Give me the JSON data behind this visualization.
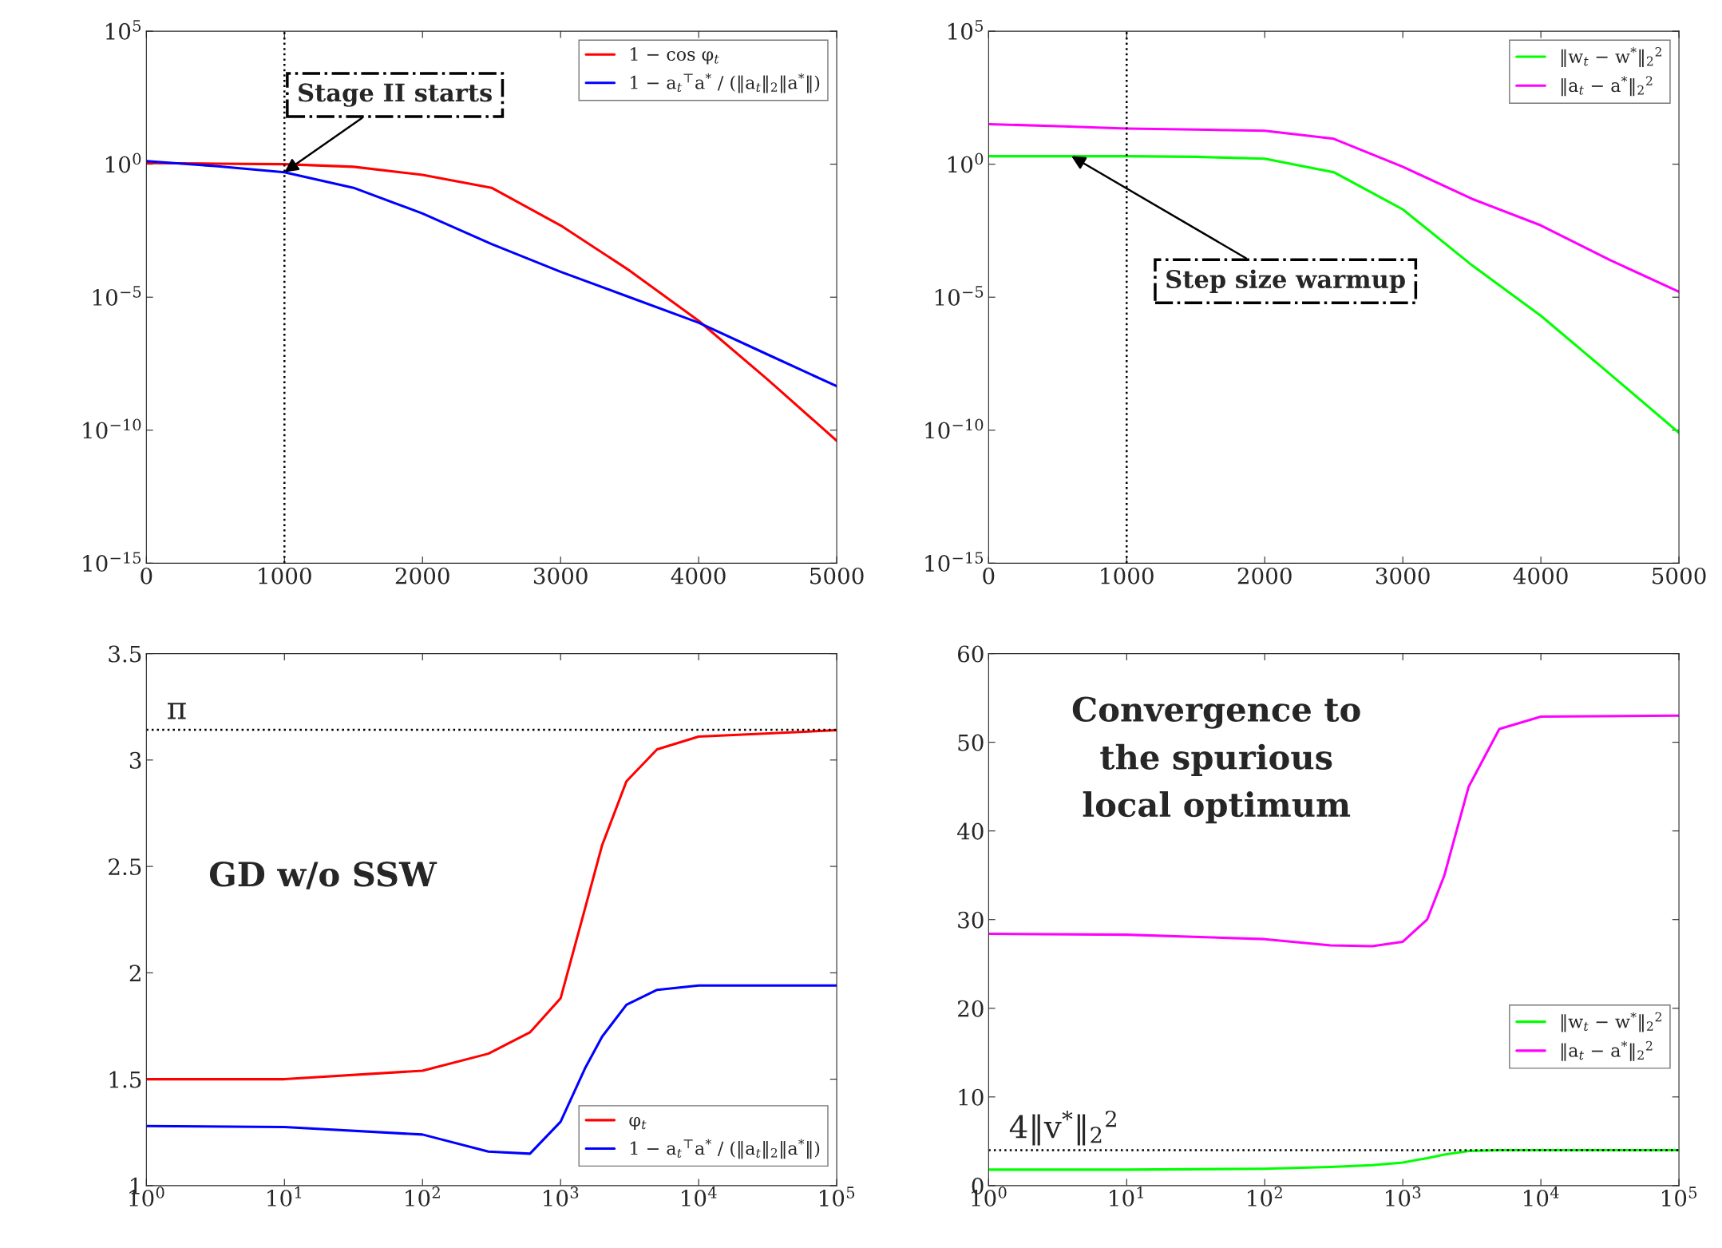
{
  "chart_data": [
    {
      "type": "line",
      "log": "y",
      "legend": "top right",
      "x": [
        0,
        500,
        1000,
        1500,
        2000,
        2500,
        3000,
        3500,
        4000,
        4500,
        5000
      ],
      "xlim": [
        0,
        5000
      ],
      "xticks": [
        0,
        1000,
        2000,
        3000,
        4000,
        5000
      ],
      "ylim": [
        1e-15,
        100000.0
      ],
      "yticks": [
        {
          "value": 1e-15,
          "label": "10$^{−15}$"
        },
        {
          "value": 1e-10,
          "label": "10$^{−10}$"
        },
        {
          "value": 1e-05,
          "label": "10$^{−5}$"
        },
        {
          "value": 1,
          "label": "10$^{0}$"
        },
        {
          "value": 100000.0,
          "label": "10$^{5}$"
        }
      ],
      "series": [
        {
          "name": "1 − cos φ$_{t}$",
          "color": "#ff0000",
          "values": [
            1.1,
            1.05,
            1.0,
            0.8,
            0.4,
            0.13,
            0.005,
            0.0001,
            1.3e-06,
            8e-09,
            4e-11
          ]
        },
        {
          "name": "1 − a$_{t}$$^{⊤}$a$^{*}$ / (‖a$_{t}$‖$_{2}$‖a$^{*}$‖)",
          "color": "#0000ff",
          "values": [
            1.3,
            0.85,
            0.5,
            0.13,
            0.014,
            0.001,
            9e-05,
            1e-05,
            1.1e-06,
            7e-08,
            4.5e-09
          ]
        }
      ],
      "ref_lines": [
        {
          "axis": "x",
          "value": 1000,
          "color": "#000000",
          "line_style": "dotted"
        }
      ],
      "annotations": [
        {
          "text": "Stage II starts",
          "x": 1000,
          "y": 0.5
        }
      ]
    },
    {
      "type": "line",
      "log": "y",
      "legend": "top right",
      "x": [
        0,
        500,
        1000,
        1500,
        2000,
        2500,
        3000,
        3500,
        4000,
        4500,
        5000
      ],
      "xlim": [
        0,
        5000
      ],
      "xticks": [
        0,
        1000,
        2000,
        3000,
        4000,
        5000
      ],
      "ylim": [
        1e-15,
        100000.0
      ],
      "yticks": [
        {
          "value": 1e-15,
          "label": "10$^{−15}$"
        },
        {
          "value": 1e-10,
          "label": "10$^{−10}$"
        },
        {
          "value": 1e-05,
          "label": "10$^{−5}$"
        },
        {
          "value": 1,
          "label": "10$^{0}$"
        },
        {
          "value": 100000.0,
          "label": "10$^{5}$"
        }
      ],
      "series": [
        {
          "name": "‖w$_{t}$ − w$^{*}$‖$_{2}$$^{2}$",
          "color": "#00ff00",
          "values": [
            2,
            2,
            2,
            1.9,
            1.6,
            0.5,
            0.02,
            0.00016,
            2e-06,
            1.3e-08,
            8e-11
          ]
        },
        {
          "name": "‖a$_{t}$ − a$^{*}$‖$_{2}$$^{2}$",
          "color": "#ff00ff",
          "values": [
            32,
            27,
            22,
            20,
            18,
            9,
            0.8,
            0.05,
            0.005,
            0.00025,
            1.6e-05
          ]
        }
      ],
      "ref_lines": [
        {
          "axis": "x",
          "value": 1000,
          "color": "#000000",
          "line_style": "dotted"
        }
      ],
      "annotations": [
        {
          "text": "Step size warmup",
          "x": 600,
          "y": 2
        }
      ]
    },
    {
      "type": "line",
      "log": "x",
      "legend": "bottom right",
      "x": [
        1,
        10,
        100,
        300,
        600,
        1000,
        1500,
        2000,
        3000,
        5000,
        10000,
        100000
      ],
      "xlim": [
        1,
        100000
      ],
      "xticks": [
        {
          "value": 1,
          "label": "10$^{0}$"
        },
        {
          "value": 10,
          "label": "10$^{1}$"
        },
        {
          "value": 100,
          "label": "10$^{2}$"
        },
        {
          "value": 1000,
          "label": "10$^{3}$"
        },
        {
          "value": 10000,
          "label": "10$^{4}$"
        },
        {
          "value": 100000,
          "label": "10$^{5}$"
        }
      ],
      "ylim": [
        1,
        3.5
      ],
      "yticks": [
        1,
        1.5,
        2,
        2.5,
        3,
        3.5
      ],
      "series": [
        {
          "name": "φ$_{t}$",
          "color": "#ff0000",
          "values": [
            1.5,
            1.5,
            1.54,
            1.62,
            1.72,
            1.88,
            2.3,
            2.6,
            2.9,
            3.05,
            3.11,
            3.14
          ]
        },
        {
          "name": "1 − a$_{t}$$^{⊤}$a$^{*}$ / (‖a$_{t}$‖$_{2}$‖a$^{*}$‖)",
          "color": "#0000ff",
          "values": [
            1.28,
            1.275,
            1.24,
            1.16,
            1.15,
            1.3,
            1.55,
            1.7,
            1.85,
            1.92,
            1.94,
            1.94
          ]
        }
      ],
      "ref_lines": [
        {
          "axis": "y",
          "value": 3.14159,
          "label": "π",
          "color": "#000000",
          "line_style": "dotted"
        }
      ],
      "annotations": [
        "GD w/o SSW"
      ]
    },
    {
      "type": "line",
      "log": "x",
      "legend": "right",
      "x": [
        1,
        10,
        100,
        300,
        600,
        1000,
        1500,
        2000,
        3000,
        5000,
        10000,
        100000
      ],
      "xlim": [
        1,
        100000
      ],
      "xticks": [
        {
          "value": 1,
          "label": "10$^{0}$"
        },
        {
          "value": 10,
          "label": "10$^{1}$"
        },
        {
          "value": 100,
          "label": "10$^{2}$"
        },
        {
          "value": 1000,
          "label": "10$^{3}$"
        },
        {
          "value": 10000,
          "label": "10$^{4}$"
        },
        {
          "value": 100000,
          "label": "10$^{5}$"
        }
      ],
      "ylim": [
        0,
        60
      ],
      "yticks": [
        0,
        10,
        20,
        30,
        40,
        50,
        60
      ],
      "series": [
        {
          "name": "‖w$_{t}$ − w$^{*}$‖$_{2}$$^{2}$",
          "color": "#00ff00",
          "values": [
            1.8,
            1.8,
            1.9,
            2.1,
            2.3,
            2.6,
            3.1,
            3.5,
            3.9,
            4,
            4,
            4
          ]
        },
        {
          "name": "‖a$_{t}$ − a$^{*}$‖$_{2}$$^{2}$",
          "color": "#ff00ff",
          "values": [
            28.4,
            28.3,
            27.8,
            27.1,
            27,
            27.5,
            30,
            35,
            45,
            51.5,
            52.9,
            53
          ]
        }
      ],
      "ref_lines": [
        {
          "axis": "y",
          "value": 4,
          "label": "4‖v$^{*}$‖$_{2}$$^{2}$",
          "color": "#000000",
          "line_style": "dotted"
        }
      ],
      "annotations": [
        "Convergence to\nthe spurious\nlocal optimum"
      ]
    }
  ]
}
